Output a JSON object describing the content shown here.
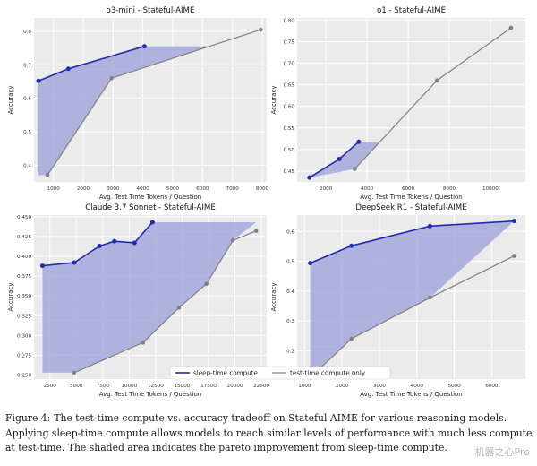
{
  "caption": {
    "label": "Figure 4:",
    "text": "The test-time compute vs. accuracy tradeoff on Stateful AIME for various reasoning models. Applying sleep-time compute allows models to reach similar levels of performance with much less compute at test-time. The shaded area indicates the pareto improvement from sleep-time compute."
  },
  "watermark": "机器之心Pro",
  "legend": {
    "sleep_label": "sleep-time compute",
    "test_label": "test-time compute only"
  },
  "colors": {
    "sleep": "#1f2bb0",
    "test": "#808080",
    "fill": "#9b9fd8",
    "panel_bg": "#ebebeb",
    "grid": "#ffffff"
  },
  "chart_data": [
    {
      "type": "line",
      "title": "o3-mini - Stateful-AIME",
      "xlabel": "Avg. Test Time Tokens / Question",
      "ylabel": "Accuracy",
      "grid": true,
      "xlim": [
        350,
        8150
      ],
      "ylim": [
        0.35,
        0.84
      ],
      "xticks": [
        1000,
        2000,
        3000,
        4000,
        5000,
        6000,
        7000,
        8000
      ],
      "yticks": [
        0.4,
        0.5,
        0.6,
        0.7,
        0.8
      ],
      "ytick_labels": [
        "0.4",
        "0.5",
        "0.6",
        "0.7",
        "0.8"
      ],
      "series": [
        {
          "name": "sleep-time compute",
          "x": [
            500,
            1500,
            4050
          ],
          "y": [
            0.652,
            0.688,
            0.755
          ]
        },
        {
          "name": "test-time compute only",
          "x": [
            800,
            2950,
            7950
          ],
          "y": [
            0.37,
            0.66,
            0.805
          ]
        }
      ]
    },
    {
      "type": "line",
      "title": "o1 - Stateful-AIME",
      "xlabel": "Avg. Test Time Tokens / Question",
      "ylabel": "Accuracy",
      "grid": true,
      "xlim": [
        600,
        11700
      ],
      "ylim": [
        0.425,
        0.805
      ],
      "xticks": [
        2000,
        4000,
        6000,
        8000,
        10000
      ],
      "yticks": [
        0.45,
        0.5,
        0.55,
        0.6,
        0.65,
        0.7,
        0.75,
        0.8
      ],
      "ytick_labels": [
        "0.45",
        "0.50",
        "0.55",
        "0.60",
        "0.65",
        "0.70",
        "0.75",
        "0.80"
      ],
      "series": [
        {
          "name": "sleep-time compute",
          "x": [
            1200,
            2650,
            3600
          ],
          "y": [
            0.435,
            0.478,
            0.518
          ]
        },
        {
          "name": "test-time compute only",
          "x": [
            3400,
            7400,
            11000
          ],
          "y": [
            0.455,
            0.66,
            0.782
          ]
        }
      ]
    },
    {
      "type": "line",
      "title": "Claude 3.7 Sonnet - Stateful-AIME",
      "xlabel": "Avg. Test Time Tokens / Question",
      "ylabel": "Accuracy",
      "grid": true,
      "xlim": [
        1000,
        23000
      ],
      "ylim": [
        0.245,
        0.452
      ],
      "xticks": [
        2500,
        5000,
        7500,
        10000,
        12500,
        15000,
        17500,
        20000,
        22500
      ],
      "yticks": [
        0.25,
        0.275,
        0.3,
        0.325,
        0.35,
        0.375,
        0.4,
        0.425,
        0.45
      ],
      "ytick_labels": [
        "0.250",
        "0.275",
        "0.300",
        "0.325",
        "0.350",
        "0.375",
        "0.400",
        "0.425",
        "0.450"
      ],
      "series": [
        {
          "name": "sleep-time compute",
          "x": [
            1800,
            4800,
            7200,
            8600,
            10500,
            12200
          ],
          "y": [
            0.388,
            0.392,
            0.413,
            0.419,
            0.417,
            0.443
          ]
        },
        {
          "name": "test-time compute only",
          "x": [
            4800,
            11300,
            14700,
            17300,
            19800,
            22000
          ],
          "y": [
            0.253,
            0.291,
            0.335,
            0.365,
            0.42,
            0.432
          ]
        }
      ]
    },
    {
      "type": "line",
      "title": "DeepSeek R1 - Stateful-AIME",
      "xlabel": "Avg. Test Time Tokens / Question",
      "ylabel": "Accuracy",
      "grid": true,
      "xlim": [
        800,
        6900
      ],
      "ylim": [
        0.105,
        0.655
      ],
      "xticks": [
        1000,
        2000,
        3000,
        4000,
        5000,
        6000
      ],
      "yticks": [
        0.2,
        0.3,
        0.4,
        0.5,
        0.6
      ],
      "ytick_labels": [
        "0.2",
        "0.3",
        "0.4",
        "0.5",
        "0.6"
      ],
      "series": [
        {
          "name": "sleep-time compute",
          "x": [
            1150,
            2250,
            4350,
            6600
          ],
          "y": [
            0.494,
            0.552,
            0.618,
            0.635
          ]
        },
        {
          "name": "test-time compute only",
          "x": [
            1150,
            2250,
            4350,
            6600
          ],
          "y": [
            0.11,
            0.24,
            0.378,
            0.518
          ]
        }
      ]
    }
  ]
}
